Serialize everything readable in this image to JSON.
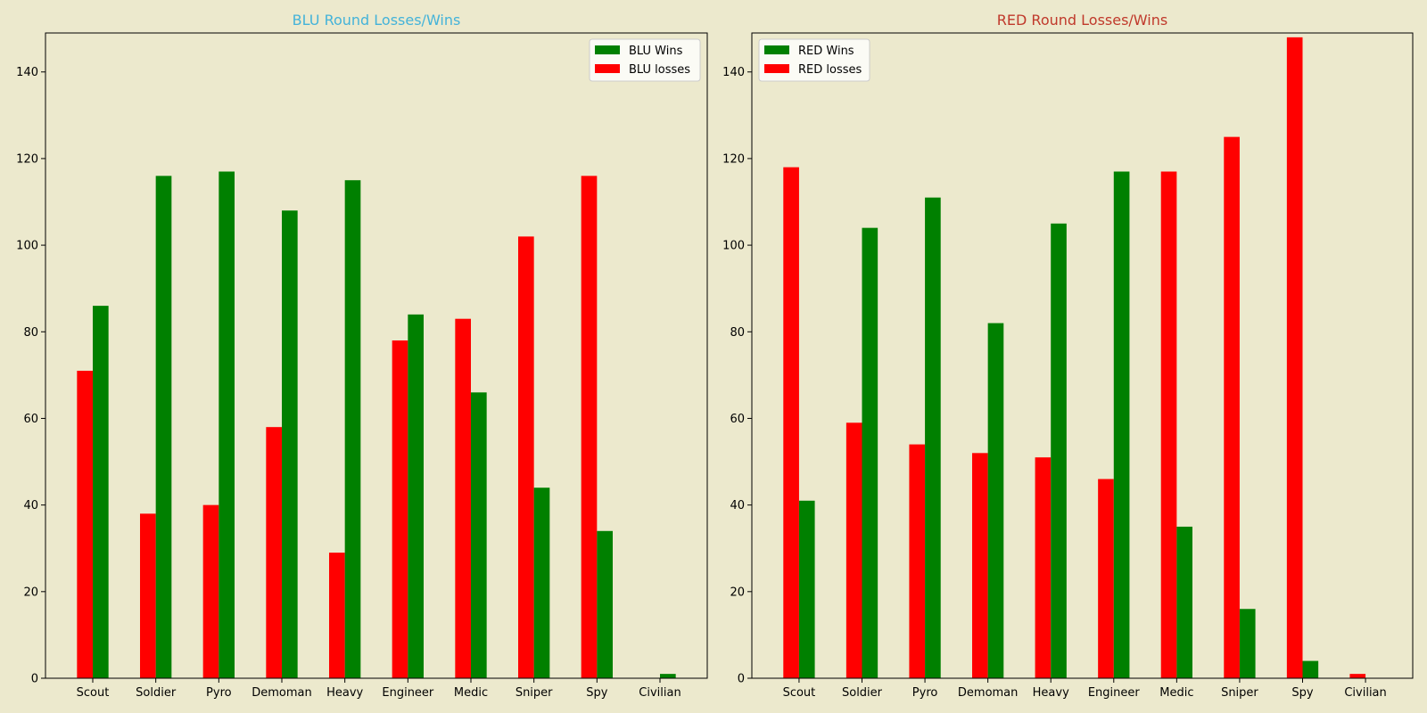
{
  "colors": {
    "background": "#ece9cd",
    "wins": "#008000",
    "losses": "#ff0000",
    "blu_title": "#44b3d9",
    "red_title": "#c0392b",
    "legend_bg": "#ffffff"
  },
  "chart_data": [
    {
      "type": "bar",
      "title": "BLU Round Losses/Wins",
      "title_color": "#44b3d9",
      "categories": [
        "Scout",
        "Soldier",
        "Pyro",
        "Demoman",
        "Heavy",
        "Engineer",
        "Medic",
        "Sniper",
        "Spy",
        "Civilian"
      ],
      "series": [
        {
          "name": "BLU Wins",
          "color": "#008000",
          "values": [
            86,
            116,
            117,
            108,
            115,
            84,
            66,
            44,
            34,
            1
          ]
        },
        {
          "name": "BLU losses",
          "color": "#ff0000",
          "values": [
            71,
            38,
            40,
            58,
            29,
            78,
            83,
            102,
            116,
            0
          ]
        }
      ],
      "ylim": [
        0,
        149
      ],
      "yticks": [
        0,
        20,
        40,
        60,
        80,
        100,
        120,
        140
      ],
      "legend": "upper right",
      "grid": false
    },
    {
      "type": "bar",
      "title": "RED Round Losses/Wins",
      "title_color": "#c0392b",
      "categories": [
        "Scout",
        "Soldier",
        "Pyro",
        "Demoman",
        "Heavy",
        "Engineer",
        "Medic",
        "Sniper",
        "Spy",
        "Civilian"
      ],
      "series": [
        {
          "name": "RED Wins",
          "color": "#008000",
          "values": [
            41,
            104,
            111,
            82,
            105,
            117,
            35,
            16,
            4,
            0
          ]
        },
        {
          "name": "RED losses",
          "color": "#ff0000",
          "values": [
            118,
            59,
            54,
            52,
            51,
            46,
            117,
            125,
            148,
            1
          ]
        }
      ],
      "ylim": [
        0,
        149
      ],
      "yticks": [
        0,
        20,
        40,
        60,
        80,
        100,
        120,
        140
      ],
      "legend": "upper left",
      "grid": false
    }
  ]
}
